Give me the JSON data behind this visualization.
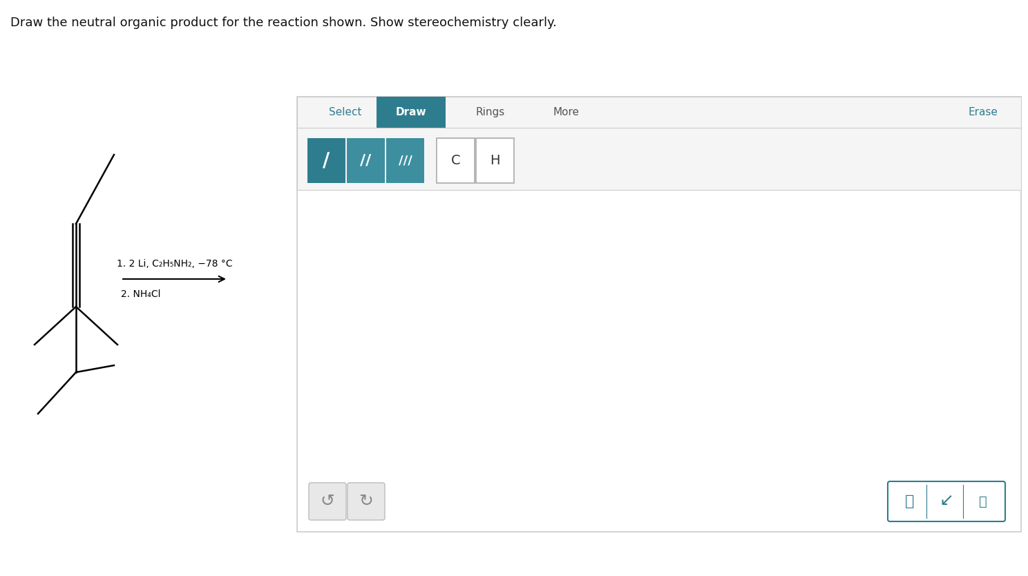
{
  "title": "Draw the neutral organic product for the reaction shown. Show stereochemistry clearly.",
  "title_fontsize": 13,
  "bg_color": "#ffffff",
  "panel_border": "#cccccc",
  "teal_color": "#2e7d8e",
  "step1_text": "1. 2 Li, C₂H₅NH₂, −78 °C",
  "step2_text": "2. NH₄Cl",
  "select_label": "Select",
  "draw_label": "Draw",
  "rings_label": "Rings",
  "more_label": "More",
  "erase_label": "Erase"
}
